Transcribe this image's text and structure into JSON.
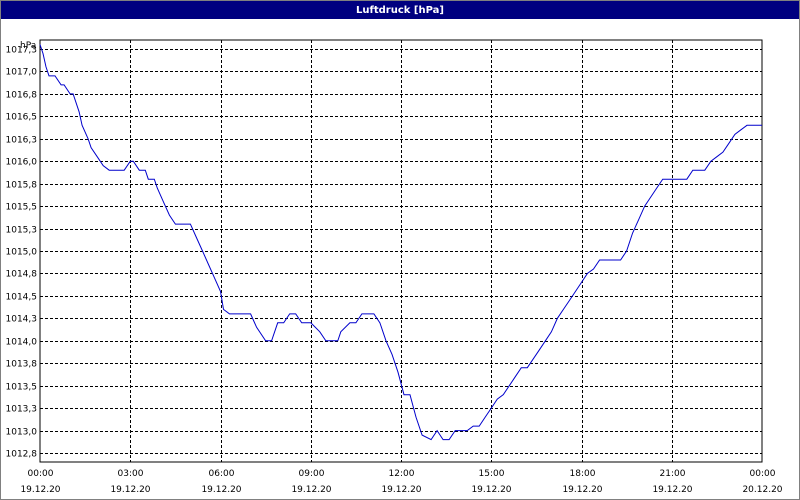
{
  "window": {
    "title": "Luftdruck [hPa]"
  },
  "colors": {
    "titlebar": "#000080",
    "line": "#0000cc",
    "grid": "#000000",
    "plot_bg": "#ffffff"
  },
  "chart_data": {
    "type": "line",
    "title": "Luftdruck [hPa]",
    "ylabel": "hPa",
    "xlabel": "",
    "ylim": [
      1012.7,
      1017.4
    ],
    "xlim": [
      0,
      24
    ],
    "grid": true,
    "yticks": [
      "1017,3",
      "1017,0",
      "1016,8",
      "1016,5",
      "1016,3",
      "1016,0",
      "1015,8",
      "1015,5",
      "1015,3",
      "1015,0",
      "1014,8",
      "1014,5",
      "1014,3",
      "1014,0",
      "1013,8",
      "1013,5",
      "1013,3",
      "1013,0",
      "1012,8"
    ],
    "ytick_values": [
      1017.3,
      1017.05,
      1016.8,
      1016.55,
      1016.3,
      1016.05,
      1015.8,
      1015.55,
      1015.3,
      1015.05,
      1014.8,
      1014.55,
      1014.3,
      1014.05,
      1013.8,
      1013.55,
      1013.3,
      1013.05,
      1012.8
    ],
    "xticks": [
      {
        "time": "00:00",
        "date": "19.12.20"
      },
      {
        "time": "03:00",
        "date": "19.12.20"
      },
      {
        "time": "06:00",
        "date": "19.12.20"
      },
      {
        "time": "09:00",
        "date": "19.12.20"
      },
      {
        "time": "12:00",
        "date": "19.12.20"
      },
      {
        "time": "15:00",
        "date": "19.12.20"
      },
      {
        "time": "18:00",
        "date": "19.12.20"
      },
      {
        "time": "21:00",
        "date": "19.12.20"
      },
      {
        "time": "00:00",
        "date": "20.12.20"
      }
    ],
    "series": [
      {
        "x": [
          0.0,
          0.1,
          0.2,
          0.3,
          0.5,
          0.7,
          0.8,
          1.0,
          1.1,
          1.3,
          1.4,
          1.6,
          1.7,
          1.9,
          2.1,
          2.3,
          2.4,
          2.8,
          3.0,
          3.1,
          3.3,
          3.5,
          3.6,
          3.8,
          3.9,
          4.1,
          4.3,
          4.5,
          4.7,
          5.0,
          5.2,
          5.4,
          5.6,
          5.8,
          6.0,
          6.1,
          6.3,
          6.5,
          7.0,
          7.2,
          7.5,
          7.7,
          7.9,
          8.1,
          8.3,
          8.5,
          8.7,
          8.9,
          9.0,
          9.3,
          9.5,
          9.7,
          9.9,
          10.0,
          10.3,
          10.5,
          10.7,
          10.9,
          11.1,
          11.3,
          11.5,
          11.7,
          11.9,
          12.1,
          12.3,
          12.5,
          12.7,
          13.0,
          13.2,
          13.4,
          13.6,
          13.8,
          14.0,
          14.2,
          14.4,
          14.6,
          14.8,
          15.0,
          15.2,
          15.4,
          15.6,
          15.8,
          16.0,
          16.2,
          16.4,
          16.6,
          16.8,
          17.0,
          17.2,
          17.4,
          17.6,
          17.8,
          18.0,
          18.2,
          18.4,
          18.6,
          18.8,
          19.0,
          19.3,
          19.5,
          19.7,
          19.9,
          20.1,
          20.3,
          20.5,
          20.7,
          20.9,
          21.1,
          21.3,
          21.5,
          21.7,
          21.9,
          22.1,
          22.3,
          22.5,
          22.7,
          22.9,
          23.1,
          23.3,
          23.5,
          23.7,
          24.0
        ],
        "y": [
          1017.35,
          1017.25,
          1017.1,
          1017.0,
          1017.0,
          1016.9,
          1016.9,
          1016.8,
          1016.8,
          1016.6,
          1016.45,
          1016.3,
          1016.2,
          1016.1,
          1016.0,
          1015.95,
          1015.95,
          1015.95,
          1016.05,
          1016.05,
          1015.95,
          1015.95,
          1015.85,
          1015.85,
          1015.75,
          1015.6,
          1015.45,
          1015.35,
          1015.35,
          1015.35,
          1015.2,
          1015.05,
          1014.9,
          1014.75,
          1014.6,
          1014.4,
          1014.35,
          1014.35,
          1014.35,
          1014.2,
          1014.05,
          1014.05,
          1014.25,
          1014.25,
          1014.35,
          1014.35,
          1014.25,
          1014.25,
          1014.25,
          1014.15,
          1014.05,
          1014.05,
          1014.05,
          1014.15,
          1014.25,
          1014.25,
          1014.35,
          1014.35,
          1014.35,
          1014.25,
          1014.05,
          1013.9,
          1013.7,
          1013.45,
          1013.45,
          1013.2,
          1013.0,
          1012.95,
          1013.05,
          1012.95,
          1012.95,
          1013.05,
          1013.05,
          1013.05,
          1013.1,
          1013.1,
          1013.2,
          1013.3,
          1013.4,
          1013.45,
          1013.55,
          1013.65,
          1013.75,
          1013.75,
          1013.85,
          1013.95,
          1014.05,
          1014.15,
          1014.3,
          1014.4,
          1014.5,
          1014.6,
          1014.7,
          1014.8,
          1014.85,
          1014.95,
          1014.95,
          1014.95,
          1014.95,
          1015.05,
          1015.25,
          1015.4,
          1015.55,
          1015.65,
          1015.75,
          1015.85,
          1015.85,
          1015.85,
          1015.85,
          1015.85,
          1015.95,
          1015.95,
          1015.95,
          1016.05,
          1016.1,
          1016.15,
          1016.25,
          1016.35,
          1016.4,
          1016.45,
          1016.45,
          1016.45
        ]
      }
    ]
  }
}
